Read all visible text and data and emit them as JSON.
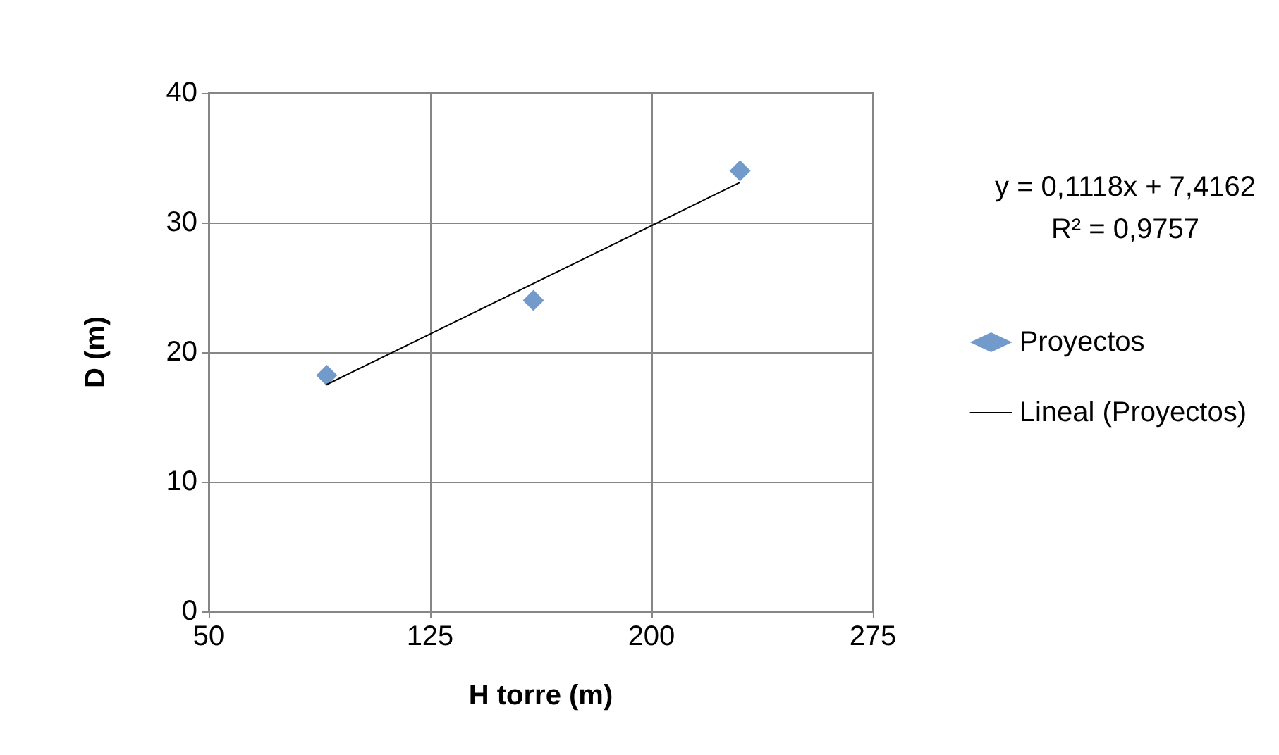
{
  "chart_data": {
    "type": "scatter",
    "xlabel": "H torre (m)",
    "ylabel": "D (m)",
    "xlim": [
      50,
      275
    ],
    "xticks": [
      50,
      125,
      200,
      275
    ],
    "ylim": [
      0,
      40
    ],
    "yticks": [
      0,
      10,
      20,
      30,
      40
    ],
    "grid": true,
    "legend": "right",
    "annotations": [
      "y = 0,1118x + 7,4162",
      "R² = 0,9757"
    ],
    "series": [
      {
        "name": "Proyectos",
        "color": "#4f81bd",
        "marker": "diamond",
        "x": [
          90,
          160,
          230
        ],
        "values": [
          18.2,
          24,
          34
        ]
      },
      {
        "name": "Lineal (Proyectos)",
        "type": "line",
        "color": "#000000",
        "marker": "none",
        "x": [
          90,
          230
        ],
        "values": [
          17.5,
          33.1
        ]
      }
    ]
  }
}
